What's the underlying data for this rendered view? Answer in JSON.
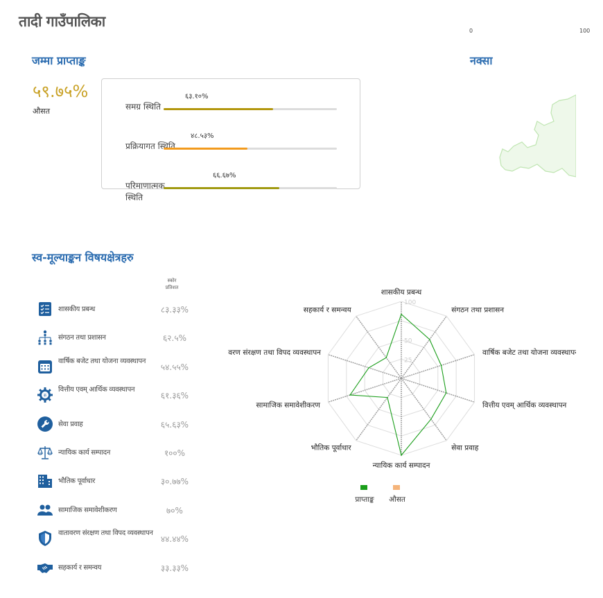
{
  "header": {
    "title": "तादी गाउँपालिका"
  },
  "map_scale": {
    "min": "0",
    "max": "100"
  },
  "summary": {
    "heading": "जम्मा प्राप्ताङ्क",
    "overall_percent": "५९.७५%",
    "overall_label": "औसत",
    "rows": [
      {
        "label": "समग्र स्थिति",
        "value_text": "६३.१०%",
        "value": 63.1,
        "color": "#b3970e"
      },
      {
        "label": "प्रक्रियागत स्थिति",
        "value_text": "४८.५३%",
        "value": 48.53,
        "color": "#f29a1d"
      },
      {
        "label": "परिमाणात्मक स्थिति",
        "value_text": "६६.६७%",
        "value": 66.67,
        "color": "#a19a12"
      }
    ]
  },
  "map": {
    "heading": "नक्सा",
    "fill_color": "#eef8ea",
    "stroke_color": "#bfe5b1"
  },
  "areas": {
    "heading": "स्व-मूल्याङ्कन विषयक्षेत्रहरु",
    "column_header_line1": "स्कोर",
    "column_header_line2": "प्रतिशत",
    "items": [
      {
        "name": "शासकीय प्रबन्ध",
        "score": "८३.३३%",
        "icon": "checklist-icon"
      },
      {
        "name": "संगठन तथा प्रशासन",
        "score": "६२.५%",
        "icon": "org-chart-icon"
      },
      {
        "name": "वार्षिक बजेट तथा योजना व्यवस्थापन",
        "score": "५४.५५%",
        "icon": "calendar-icon"
      },
      {
        "name": "वित्तीय एवम् आर्थिक व्यवस्थापन",
        "score": "६१.३६%",
        "icon": "money-gear-icon"
      },
      {
        "name": "सेवा प्रवाह",
        "score": "६५.६३%",
        "icon": "wrench-icon"
      },
      {
        "name": "न्यायिक कार्य सम्पादन",
        "score": "१००%",
        "icon": "scales-icon"
      },
      {
        "name": "भौतिक पूर्वाधार",
        "score": "३०.७७%",
        "icon": "building-icon"
      },
      {
        "name": "सामाजिक समावेशीकरण",
        "score": "७०%",
        "icon": "people-icon"
      },
      {
        "name": "वातावरण संरक्षण तथा विपद व्यवस्थापन",
        "score": "४४.४४%",
        "icon": "shield-icon"
      },
      {
        "name": "सहकार्य र समन्वय",
        "score": "३३.३३%",
        "icon": "handshake-icon"
      }
    ]
  },
  "chart_data": {
    "type": "radar",
    "axes": [
      "शासकीय प्रबन्ध",
      "संगठन तथा प्रशासन",
      "वार्षिक बजेट तथा योजना व्यवस्थापन",
      "वित्तीय एवम् आर्थिक व्यवस्थापन",
      "सेवा प्रवाह",
      "न्यायिक कार्य सम्पादन",
      "भौतिक पूर्वाधार",
      "सामाजिक समावेशीकरण",
      "वातावरण संरक्षण तथा विपद व्यवस्थापन",
      "सहकार्य र समन्वय"
    ],
    "axis_labels_shown": [
      "शासकीय प्रबन्ध",
      "संगठन तथा प्रशासन",
      "वार्षिक बजेट तथा योजना व्यवस्थापन",
      "वित्तीय एवम् आर्थिक व्यवस्थापन",
      "सेवा प्रवाह",
      "न्यायिक कार्य सम्पादन",
      "भौतिक पूर्वाधार",
      "सामाजिक समावेशीकरण",
      "वरण संरक्षण तथा विपद व्यवस्थापन",
      "सहकार्य र समन्वय"
    ],
    "range": [
      0,
      100
    ],
    "ticks": [
      "25",
      "50",
      "100"
    ],
    "series": [
      {
        "name": "प्राप्ताङ्क",
        "color": "#1a9e1a",
        "values": [
          83.33,
          62.5,
          54.55,
          61.36,
          65.63,
          100,
          30.77,
          70,
          44.44,
          33.33
        ]
      },
      {
        "name": "औसत",
        "color": "#f5b47a",
        "values": []
      }
    ],
    "legend_position": "bottom",
    "grid": true
  }
}
